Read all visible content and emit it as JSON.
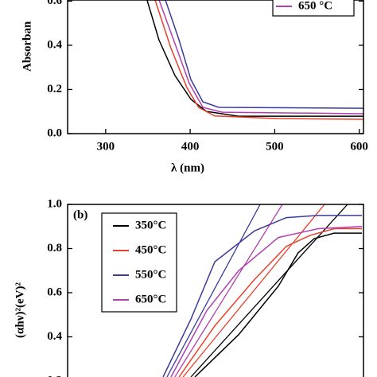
{
  "chart_data": [
    {
      "type": "line",
      "y_label": "Absorban",
      "x_label": "λ (nm)",
      "xlim": [
        255,
        605
      ],
      "ylim": [
        0,
        0.605
      ],
      "xticks": [
        300,
        400,
        500,
        600
      ],
      "yticks": [
        {
          "value": 0,
          "label": "0.0"
        },
        {
          "value": 0.2,
          "label": "0.2"
        },
        {
          "value": 0.4,
          "label": "0.4"
        },
        {
          "value": 0.6,
          "label": "0.6"
        }
      ],
      "series": [
        {
          "color": "#000000",
          "x": [
            349,
            363,
            382,
            401,
            419,
            457,
            551,
            605
          ],
          "values": [
            0.605,
            0.425,
            0.263,
            0.155,
            0.101,
            0.079,
            0.079,
            0.079
          ]
        },
        {
          "color": "#e8402a",
          "x": [
            358.5,
            377,
            396,
            410,
            429,
            504,
            605
          ],
          "values": [
            0.605,
            0.389,
            0.209,
            0.119,
            0.08,
            0.068,
            0.065
          ]
        },
        {
          "color": "#3a3a9a",
          "x": [
            370.7,
            386.7,
            400.8,
            414.9,
            433.8,
            605
          ],
          "values": [
            0.605,
            0.425,
            0.245,
            0.144,
            0.119,
            0.115
          ]
        },
        {
          "name": "650 °C",
          "color": "#b040b0",
          "x": [
            363.2,
            382,
            399,
            415,
            438,
            605
          ],
          "values": [
            0.605,
            0.407,
            0.227,
            0.119,
            0.097,
            0.09
          ]
        }
      ]
    },
    {
      "type": "line",
      "panel_label": "(b)",
      "y_label": "(αhν)²(eV)²",
      "xlim": [
        2.8,
        4.0
      ],
      "ylim": [
        0.2,
        1.0
      ],
      "yticks": [
        {
          "value": 0.2,
          "label": "0.2"
        },
        {
          "value": 0.4,
          "label": "0.4"
        },
        {
          "value": 0.6,
          "label": "0.6"
        },
        {
          "value": 0.8,
          "label": "0.8"
        },
        {
          "value": 1,
          "label": "1.0"
        }
      ],
      "series": [
        {
          "name": "350°C",
          "color": "#000000",
          "x": [
            3.316,
            3.494,
            3.655,
            3.735,
            3.8,
            3.881,
            3.994
          ],
          "values": [
            0.218,
            0.41,
            0.63,
            0.78,
            0.845,
            0.87,
            0.87
          ]
        },
        {
          "name": "450°C",
          "color": "#e8402a",
          "x": [
            3.252,
            3.397,
            3.558,
            3.687,
            3.784,
            3.881,
            3.994
          ],
          "values": [
            0.218,
            0.45,
            0.66,
            0.81,
            0.86,
            0.89,
            0.89
          ]
        },
        {
          "name": "550°C",
          "color": "#3a3a9a",
          "x": [
            3.187,
            3.3,
            3.397,
            3.558,
            3.687,
            3.816,
            3.994
          ],
          "values": [
            0.218,
            0.48,
            0.74,
            0.88,
            0.94,
            0.95,
            0.95
          ]
        },
        {
          "name": "650°C",
          "color": "#b040b0",
          "x": [
            3.219,
            3.365,
            3.494,
            3.655,
            3.816,
            3.994
          ],
          "values": [
            0.218,
            0.52,
            0.7,
            0.85,
            0.89,
            0.9
          ]
        }
      ],
      "tangents": [
        {
          "color": "#000000",
          "x": [
            3.3,
            3.935
          ],
          "values": [
            0.218,
            1
          ]
        },
        {
          "color": "#e8402a",
          "x": [
            3.268,
            3.842
          ],
          "values": [
            0.218,
            1
          ]
        },
        {
          "color": "#3a3a9a",
          "x": [
            3.203,
            3.581
          ],
          "values": [
            0.218,
            1
          ]
        },
        {
          "color": "#b040b0",
          "x": [
            3.235,
            3.671
          ],
          "values": [
            0.218,
            1
          ]
        }
      ]
    }
  ]
}
